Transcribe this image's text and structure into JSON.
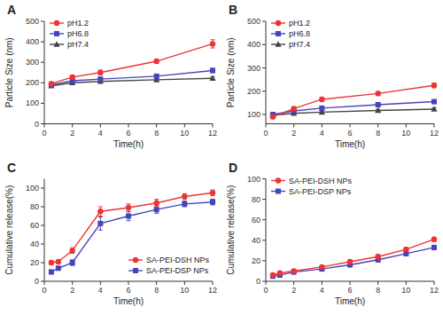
{
  "chart_data": [
    {
      "type": "line",
      "title": "A",
      "xlabel": "Time(h)",
      "ylabel": "Particle Size (nm)",
      "x": [
        0.5,
        2,
        4,
        8,
        12
      ],
      "xlim": [
        0,
        12
      ],
      "xticks": [
        0,
        2,
        4,
        6,
        8,
        10,
        12
      ],
      "ylim": [
        0,
        500
      ],
      "yticks": [
        0,
        100,
        200,
        300,
        400,
        500
      ],
      "legend": "upper left",
      "series": [
        {
          "name": "pH1.2",
          "color": "#EE3333",
          "marker": "circle",
          "values": [
            195,
            228,
            250,
            305,
            390
          ],
          "errors": [
            8,
            10,
            12,
            10,
            20
          ]
        },
        {
          "name": "pH6.8",
          "color": "#4444BB",
          "marker": "square",
          "values": [
            190,
            210,
            218,
            232,
            260
          ],
          "errors": [
            5,
            8,
            8,
            8,
            10
          ]
        },
        {
          "name": "pH7.4",
          "color": "#444444",
          "marker": "triangle",
          "values": [
            185,
            200,
            207,
            215,
            222
          ],
          "errors": [
            5,
            6,
            6,
            6,
            8
          ]
        }
      ]
    },
    {
      "type": "line",
      "title": "B",
      "xlabel": "Time(h)",
      "ylabel": "Particle Size (nm)",
      "x": [
        0.5,
        2,
        4,
        8,
        12
      ],
      "xlim": [
        0,
        12
      ],
      "xticks": [
        0,
        2,
        4,
        6,
        8,
        10,
        12
      ],
      "ylim": [
        60,
        500
      ],
      "yticks": [
        100,
        200,
        300,
        400,
        500
      ],
      "legend": "upper left",
      "series": [
        {
          "name": "pH1.2",
          "color": "#EE3333",
          "marker": "circle",
          "values": [
            90,
            125,
            165,
            190,
            225
          ],
          "errors": [
            6,
            8,
            8,
            8,
            10
          ]
        },
        {
          "name": "pH6.8",
          "color": "#4444BB",
          "marker": "square",
          "values": [
            100,
            115,
            127,
            142,
            155
          ],
          "errors": [
            5,
            6,
            6,
            6,
            8
          ]
        },
        {
          "name": "pH7.4",
          "color": "#444444",
          "marker": "triangle",
          "values": [
            97,
            105,
            110,
            117,
            123
          ],
          "errors": [
            4,
            5,
            5,
            5,
            6
          ]
        }
      ]
    },
    {
      "type": "line",
      "title": "C",
      "xlabel": "Time(h)",
      "ylabel": "Cumulative release(%)",
      "x": [
        0.5,
        1,
        2,
        4,
        6,
        8,
        10,
        12
      ],
      "xlim": [
        0,
        12
      ],
      "xticks": [
        0,
        2,
        4,
        6,
        8,
        10,
        12
      ],
      "ylim": [
        0,
        110
      ],
      "yticks": [
        0,
        20,
        40,
        60,
        80,
        100
      ],
      "legend": "lower right",
      "series": [
        {
          "name": "SA-PEI-DSH NPs",
          "color": "#EE3333",
          "marker": "circle",
          "values": [
            20,
            21,
            33,
            75,
            79,
            84,
            91,
            95
          ],
          "errors": [
            2,
            2,
            3,
            5,
            4,
            4,
            3,
            3
          ]
        },
        {
          "name": "SA-PEI-DSP NPs",
          "color": "#4444BB",
          "marker": "square",
          "values": [
            10,
            14,
            20,
            62,
            70,
            77,
            83,
            85
          ],
          "errors": [
            2,
            2,
            3,
            7,
            5,
            4,
            3,
            3
          ]
        }
      ]
    },
    {
      "type": "line",
      "title": "D",
      "xlabel": "Time(h)",
      "ylabel": "Cumulative release(%)",
      "x": [
        0.5,
        1,
        2,
        4,
        6,
        8,
        10,
        12
      ],
      "xlim": [
        0,
        12
      ],
      "xticks": [
        0,
        2,
        4,
        6,
        8,
        10,
        12
      ],
      "ylim": [
        0,
        100
      ],
      "yticks": [
        0,
        20,
        40,
        60,
        80,
        100
      ],
      "legend": "upper left",
      "series": [
        {
          "name": "SA-PEI-DSH NPs",
          "color": "#EE3333",
          "marker": "circle",
          "values": [
            6,
            8,
            10,
            14,
            19,
            24,
            31,
            41
          ],
          "errors": [
            1,
            1,
            1,
            1,
            2,
            2,
            2,
            2
          ]
        },
        {
          "name": "SA-PEI-DSP NPs",
          "color": "#4444BB",
          "marker": "square",
          "values": [
            5,
            6,
            9,
            12,
            16,
            21,
            27,
            33
          ],
          "errors": [
            1,
            1,
            1,
            1,
            1,
            2,
            2,
            2
          ]
        }
      ]
    }
  ]
}
